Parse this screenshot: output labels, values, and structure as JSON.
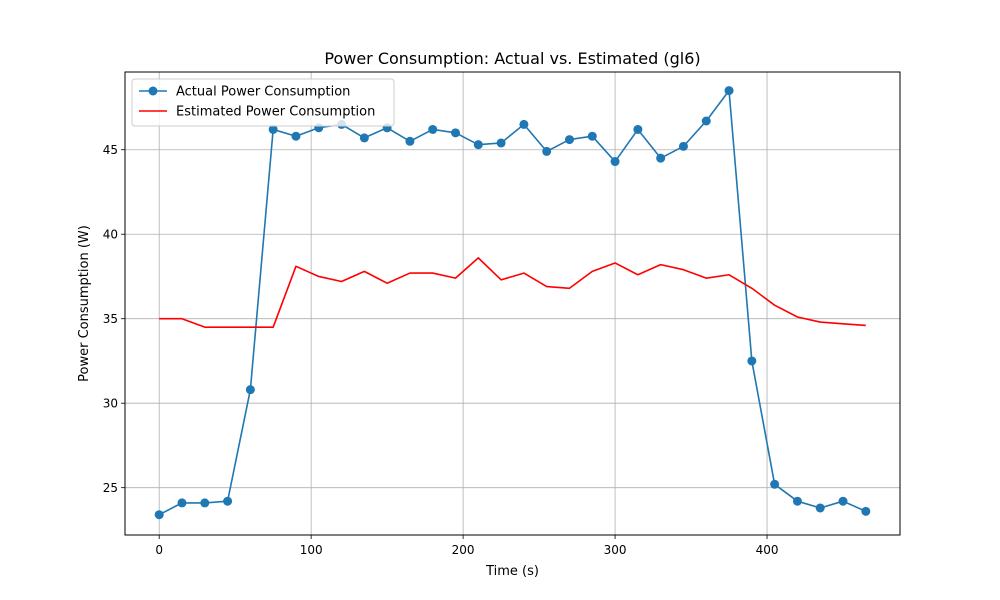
{
  "chart_data": {
    "type": "line",
    "title": "Power Consumption: Actual vs. Estimated (gl6)",
    "xlabel": "Time (s)",
    "ylabel": "Power Consumption (W)",
    "xlim": [
      -22.5,
      487.5
    ],
    "ylim": [
      22.2,
      49.6
    ],
    "xticks": [
      0,
      100,
      200,
      300,
      400
    ],
    "yticks": [
      25,
      30,
      35,
      40,
      45
    ],
    "grid": true,
    "legend_position": "top-left",
    "x": [
      0,
      15,
      30,
      45,
      60,
      75,
      90,
      105,
      120,
      135,
      150,
      165,
      180,
      195,
      210,
      225,
      240,
      255,
      270,
      285,
      300,
      315,
      330,
      345,
      360,
      375,
      390,
      405,
      420,
      435,
      450,
      465
    ],
    "series": [
      {
        "name": "Actual Power Consumption",
        "color": "#1f77b4",
        "marker": "circle",
        "values": [
          23.4,
          24.1,
          24.1,
          24.2,
          30.8,
          46.2,
          45.8,
          46.3,
          46.5,
          45.7,
          46.3,
          45.5,
          46.2,
          46.0,
          45.3,
          45.4,
          46.5,
          44.9,
          45.6,
          45.8,
          44.3,
          46.2,
          44.5,
          45.2,
          46.7,
          48.5,
          32.5,
          25.2,
          24.2,
          23.8,
          24.2,
          23.6
        ]
      },
      {
        "name": "Estimated Power Consumption",
        "color": "#ff0000",
        "marker": "none",
        "values": [
          35.0,
          35.0,
          34.5,
          34.5,
          34.5,
          34.5,
          38.1,
          37.5,
          37.2,
          37.8,
          37.1,
          37.7,
          37.7,
          37.4,
          38.6,
          37.3,
          37.7,
          36.9,
          36.8,
          37.8,
          38.3,
          37.6,
          38.2,
          37.9,
          37.4,
          37.6,
          36.8,
          35.8,
          35.1,
          34.8,
          34.7,
          34.6
        ]
      }
    ]
  }
}
